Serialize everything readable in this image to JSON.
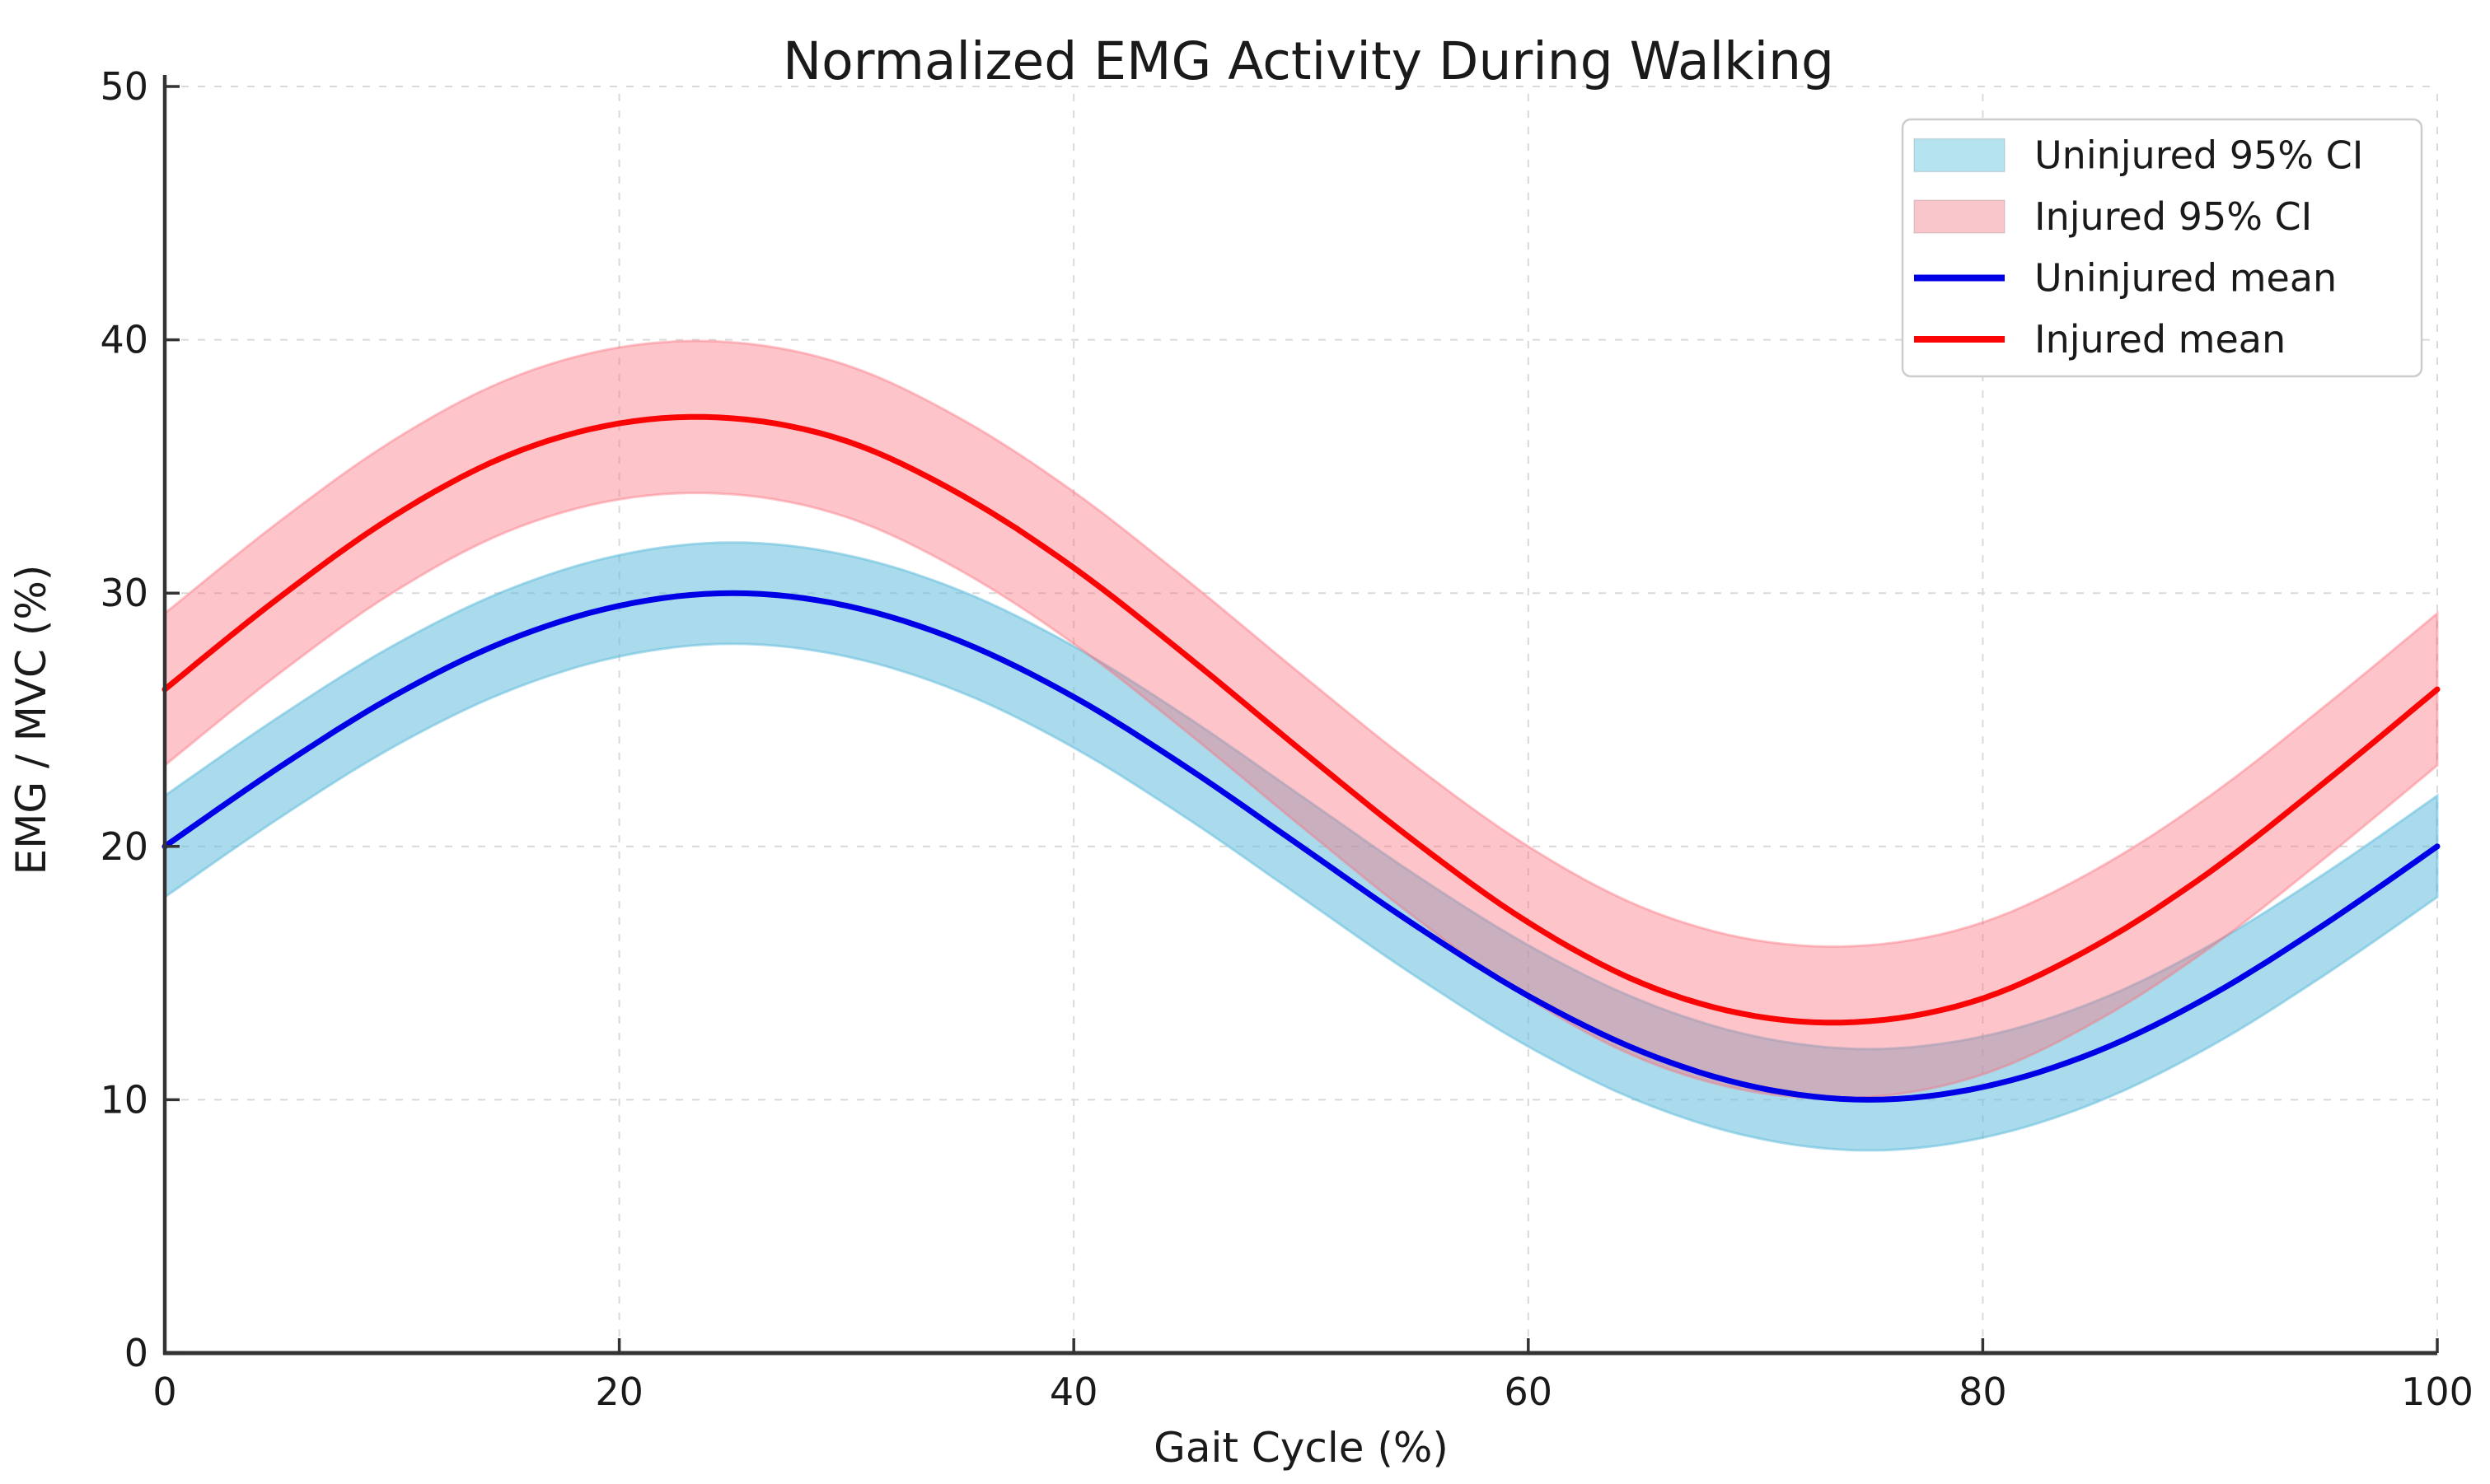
{
  "chart_data": {
    "type": "line",
    "title": "Normalized EMG Activity During Walking",
    "xlabel": "Gait Cycle (%)",
    "ylabel": "EMG / MVC (%)",
    "xlim": [
      0,
      100
    ],
    "ylim": [
      0,
      50
    ],
    "xticks": [
      0,
      20,
      40,
      60,
      80,
      100
    ],
    "yticks": [
      0,
      10,
      20,
      30,
      40,
      50
    ],
    "grid": true,
    "grid_style": "dotted",
    "legend_position": "upper right",
    "x": [
      0,
      5,
      10,
      15,
      20,
      25,
      30,
      35,
      40,
      45,
      50,
      55,
      60,
      65,
      70,
      75,
      80,
      85,
      90,
      95,
      100
    ],
    "series": [
      {
        "name": "Uninjured mean",
        "line_color": "#0000e6",
        "values": [
          20.0,
          23.1,
          25.9,
          28.1,
          29.5,
          30.0,
          29.5,
          28.1,
          25.9,
          23.1,
          20.0,
          16.9,
          14.1,
          11.9,
          10.5,
          10.0,
          10.5,
          11.9,
          14.1,
          16.9,
          20.0
        ],
        "ci_label": "Uninjured 95% CI",
        "ci_halfwidth": 2.0,
        "ci_fill": "rgba(100,190,220,0.55)",
        "ci_legend_color": "#b5e3f0"
      },
      {
        "name": "Injured mean",
        "line_color": "#fa0505",
        "values": [
          26.2,
          29.8,
          33.0,
          35.4,
          36.7,
          36.9,
          36.0,
          33.9,
          31.0,
          27.5,
          23.8,
          20.2,
          17.0,
          14.6,
          13.3,
          13.1,
          14.0,
          16.1,
          19.0,
          22.5,
          26.2
        ],
        "ci_label": "Injured 95% CI",
        "ci_halfwidth": 3.0,
        "ci_fill": "rgba(250,110,122,0.40)",
        "ci_legend_color": "#f9c6cb"
      }
    ],
    "legend": [
      {
        "label": "Uninjured 95% CI",
        "swatch": "patch",
        "color": "#b5e3f0"
      },
      {
        "label": "Injured 95% CI",
        "swatch": "patch",
        "color": "#f9c6cb"
      },
      {
        "label": "Uninjured mean",
        "swatch": "line",
        "color": "#0000e6"
      },
      {
        "label": "Injured mean",
        "swatch": "line",
        "color": "#fa0505"
      }
    ],
    "axis_color": "#333333",
    "grid_color": "#d9d9d9",
    "text_color": "#1a1a1a",
    "background_color": "#ffffff"
  }
}
